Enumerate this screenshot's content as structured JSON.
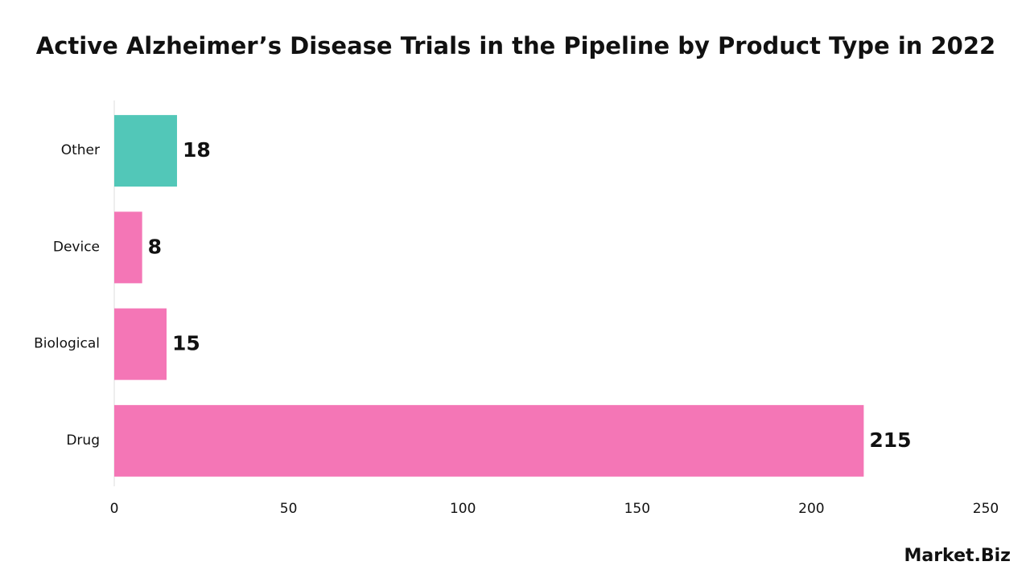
{
  "chart_data": {
    "type": "hbar",
    "title": "Active Alzheimer’s Disease Trials in the Pipeline by Product Type in 2022",
    "categories": [
      "Other",
      "Device",
      "Biological",
      "Drug"
    ],
    "values": [
      18,
      8,
      15,
      215
    ],
    "colors": [
      "#52c7b8",
      "#f476b6",
      "#f476b6",
      "#f476b6"
    ],
    "xlim": [
      0,
      250
    ],
    "xticks": [
      0,
      50,
      100,
      150,
      200,
      250
    ],
    "grid": false,
    "logo": "Market.Biz"
  }
}
